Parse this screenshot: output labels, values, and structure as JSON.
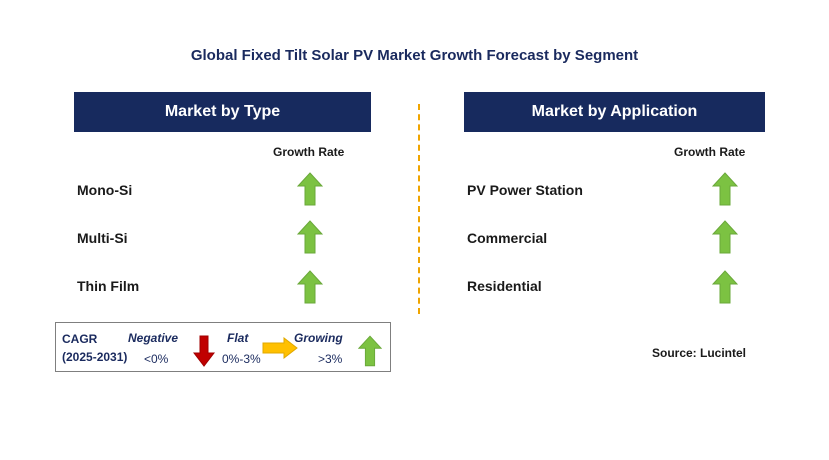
{
  "title": "Global Fixed Tilt Solar PV Market Growth Forecast by Segment",
  "left_panel": {
    "header": "Market by Type",
    "column_label": "Growth Rate",
    "rows": [
      {
        "label": "Mono-Si",
        "trend": "growing"
      },
      {
        "label": "Multi-Si",
        "trend": "growing"
      },
      {
        "label": "Thin Film",
        "trend": "growing"
      }
    ]
  },
  "right_panel": {
    "header": "Market by Application",
    "column_label": "Growth Rate",
    "rows": [
      {
        "label": "PV Power Station",
        "trend": "growing"
      },
      {
        "label": "Commercial",
        "trend": "growing"
      },
      {
        "label": "Residential",
        "trend": "growing"
      }
    ]
  },
  "legend": {
    "cagr_label": "CAGR",
    "period": "(2025-2031)",
    "negative": {
      "label": "Negative",
      "range": "<0%",
      "icon": "down-arrow-icon"
    },
    "flat": {
      "label": "Flat",
      "range": "0%-3%",
      "icon": "right-arrow-icon"
    },
    "growing": {
      "label": "Growing",
      "range": ">3%",
      "icon": "up-arrow-icon"
    }
  },
  "source": "Source: Lucintel",
  "colors": {
    "header_bg": "#172a5e",
    "growing": "#7cc242",
    "negative": "#c00000",
    "flat": "#ffc000",
    "divider": "#f0a500"
  }
}
